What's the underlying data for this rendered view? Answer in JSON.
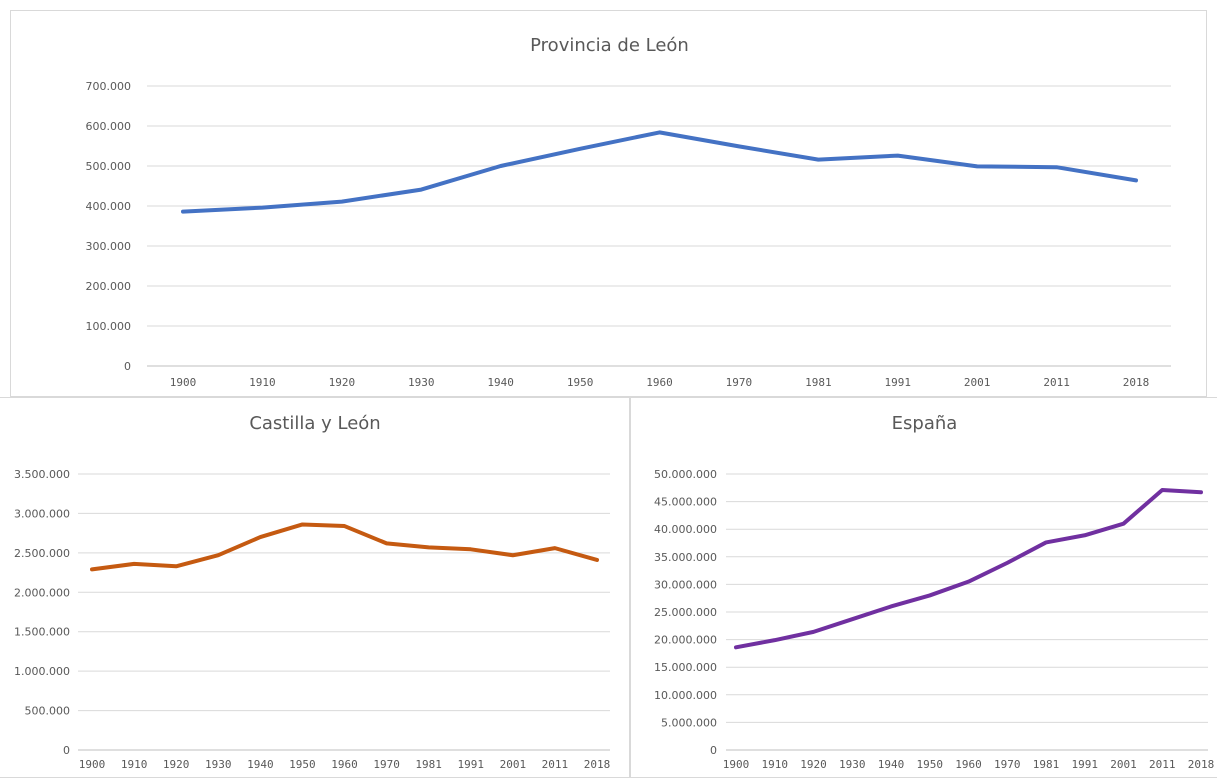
{
  "chart_data": [
    {
      "type": "line",
      "title": "Provincia de León",
      "categories": [
        "1900",
        "1910",
        "1920",
        "1930",
        "1940",
        "1950",
        "1960",
        "1970",
        "1981",
        "1991",
        "2001",
        "2011",
        "2018"
      ],
      "series": [
        {
          "values": [
            386000,
            396000,
            411000,
            441000,
            500000,
            543000,
            584000,
            549000,
            516000,
            526000,
            499000,
            497000,
            464000
          ],
          "color": "#4472c4"
        }
      ],
      "ylim": [
        0,
        700000
      ],
      "yticks": [
        "0",
        "100.000",
        "200.000",
        "300.000",
        "400.000",
        "500.000",
        "600.000",
        "700.000"
      ],
      "grid": true,
      "legend": "none"
    },
    {
      "type": "line",
      "title": "Castilla y León",
      "categories": [
        "1900",
        "1910",
        "1920",
        "1930",
        "1940",
        "1950",
        "1960",
        "1970",
        "1981",
        "1991",
        "2001",
        "2011",
        "2018"
      ],
      "series": [
        {
          "values": [
            2290000,
            2360000,
            2330000,
            2470000,
            2700000,
            2860000,
            2840000,
            2620000,
            2570000,
            2545000,
            2470000,
            2560000,
            2410000
          ],
          "color": "#c55a11"
        }
      ],
      "ylim": [
        0,
        3500000
      ],
      "yticks": [
        "0",
        "500.000",
        "1.000.000",
        "1.500.000",
        "2.000.000",
        "2.500.000",
        "3.000.000",
        "3.500.000"
      ],
      "grid": true,
      "legend": "none"
    },
    {
      "type": "line",
      "title": "España",
      "categories": [
        "1900",
        "1910",
        "1920",
        "1930",
        "1940",
        "1950",
        "1960",
        "1970",
        "1981",
        "1991",
        "2001",
        "2011",
        "2018"
      ],
      "series": [
        {
          "values": [
            18600000,
            19900000,
            21400000,
            23700000,
            26000000,
            28000000,
            30500000,
            33900000,
            37600000,
            38900000,
            41000000,
            47100000,
            46700000
          ],
          "color": "#7030a0"
        }
      ],
      "ylim": [
        0,
        50000000
      ],
      "yticks": [
        "0",
        "5.000.000",
        "10.000.000",
        "15.000.000",
        "20.000.000",
        "25.000.000",
        "30.000.000",
        "35.000.000",
        "40.000.000",
        "45.000.000",
        "50.000.000"
      ],
      "grid": true,
      "legend": "none"
    }
  ]
}
